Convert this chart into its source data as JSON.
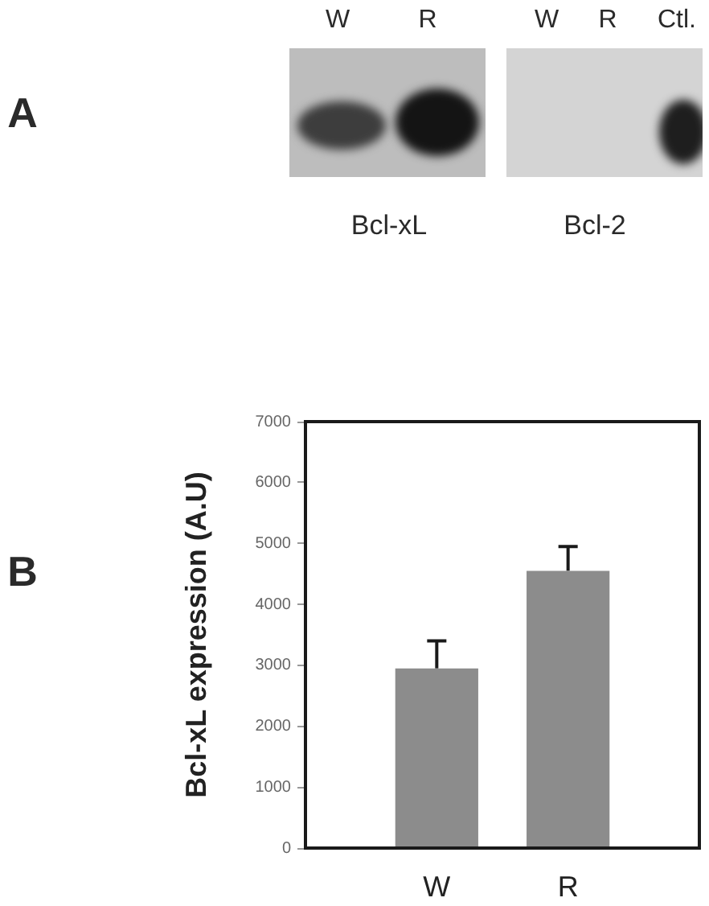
{
  "chart_data": {
    "type": "bar",
    "ylabel": "Bcl-xL expression (A.U)",
    "categories": [
      "W",
      "R"
    ],
    "values": [
      2950,
      4550
    ],
    "errors": [
      [
        2950,
        3400
      ],
      [
        4550,
        4950
      ]
    ],
    "color": "#8c8c8c",
    "ylim": [
      0,
      7000
    ],
    "yticks": [
      0,
      1000,
      2000,
      3000,
      4000,
      5000,
      6000,
      7000
    ],
    "annotations": [
      "A",
      "B",
      "W",
      "R",
      "W",
      "R",
      "Ctl.",
      "Bcl-xL",
      "Bcl-2"
    ]
  }
}
